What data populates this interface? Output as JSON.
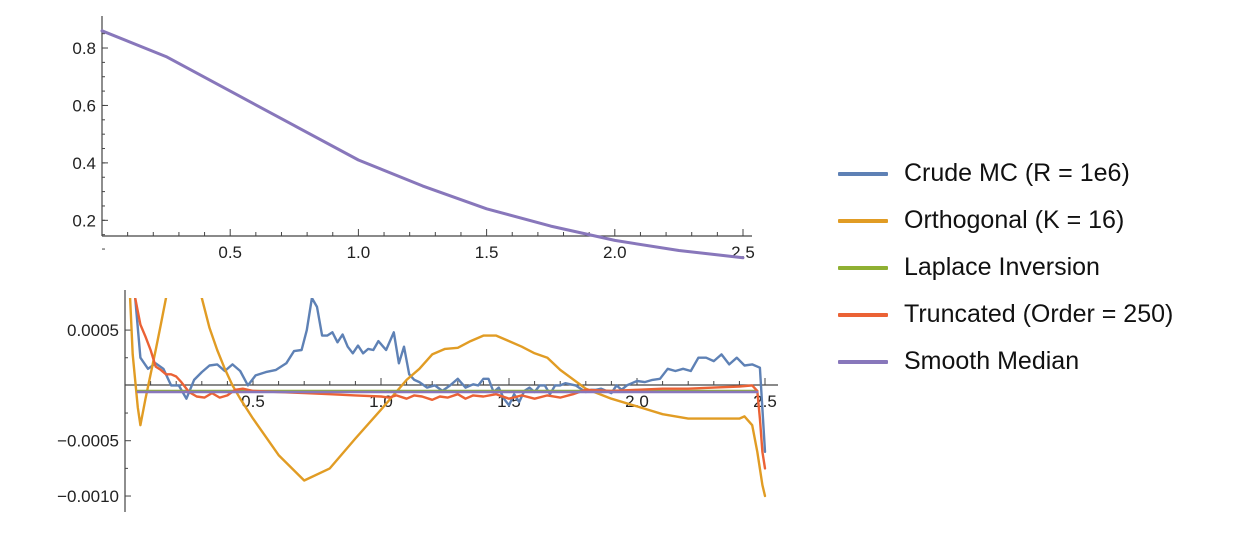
{
  "chart_data": [
    {
      "type": "line",
      "xlim": [
        0,
        2.5
      ],
      "ylim": [
        0.05,
        0.9
      ],
      "x_ticks": [
        "0.5",
        "1.0",
        "1.5",
        "2.0",
        "2.5"
      ],
      "y_ticks": [
        "0.2",
        "0.4",
        "0.6",
        "0.8"
      ],
      "grid": false,
      "series": [
        {
          "name": "Smooth Median",
          "color": "#8877bb",
          "x": [
            0.0,
            0.25,
            0.5,
            0.75,
            1.0,
            1.25,
            1.5,
            1.75,
            2.0,
            2.25,
            2.5
          ],
          "y": [
            0.86,
            0.77,
            0.65,
            0.53,
            0.41,
            0.32,
            0.24,
            0.18,
            0.13,
            0.095,
            0.07
          ]
        }
      ]
    },
    {
      "type": "line",
      "xlim": [
        0,
        2.5
      ],
      "ylim": [
        -0.00112,
        0.00079
      ],
      "x_ticks": [
        "0.5",
        "1.0",
        "1.5",
        "2.0",
        "2.5"
      ],
      "y_ticks": [
        "0.0005",
        "-0.0005",
        "-0.0010"
      ],
      "grid": false,
      "series": [
        {
          "name": "Crude MC (R = 1e6)",
          "color": "#5e81b5",
          "x": [
            0.04,
            0.06,
            0.09,
            0.12,
            0.15,
            0.18,
            0.21,
            0.24,
            0.27,
            0.3,
            0.33,
            0.36,
            0.39,
            0.42,
            0.45,
            0.48,
            0.51,
            0.55,
            0.59,
            0.63,
            0.66,
            0.69,
            0.71,
            0.73,
            0.75,
            0.77,
            0.79,
            0.81,
            0.83,
            0.85,
            0.87,
            0.89,
            0.91,
            0.93,
            0.95,
            0.97,
            0.99,
            1.02,
            1.05,
            1.07,
            1.09,
            1.11,
            1.13,
            1.15,
            1.18,
            1.21,
            1.24,
            1.27,
            1.3,
            1.33,
            1.36,
            1.38,
            1.4,
            1.42,
            1.44,
            1.46,
            1.48,
            1.5,
            1.52,
            1.54,
            1.56,
            1.58,
            1.6,
            1.62,
            1.64,
            1.66,
            1.68,
            1.7,
            1.72,
            1.74,
            1.76,
            1.78,
            1.8,
            1.82,
            1.84,
            1.86,
            1.88,
            1.9,
            1.92,
            1.94,
            1.96,
            1.98,
            2.0,
            2.03,
            2.06,
            2.09,
            2.12,
            2.15,
            2.18,
            2.21,
            2.24,
            2.27,
            2.3,
            2.33,
            2.36,
            2.39,
            2.42,
            2.45,
            2.48,
            2.5
          ],
          "y": [
            0.00079,
            0.00025,
            0.00015,
            0.0002,
            0.00015,
            0.0,
            0.0,
            -0.00012,
            5e-05,
            0.00012,
            0.00018,
            0.00019,
            0.00013,
            0.00019,
            0.00013,
            0.0,
            9e-05,
            0.00012,
            0.00014,
            0.0002,
            0.00031,
            0.00032,
            0.0005,
            0.00079,
            0.00071,
            0.00045,
            0.00045,
            0.00048,
            0.00039,
            0.00046,
            0.00035,
            0.00029,
            0.00036,
            0.00029,
            0.00033,
            0.00032,
            0.0004,
            0.00032,
            0.00048,
            0.0002,
            0.00035,
            0.0001,
            5e-05,
            3e-05,
            -2e-05,
            0.0,
            -5e-05,
            0.0,
            6e-05,
            -2e-05,
            1e-05,
            0.0,
            6e-05,
            6e-05,
            -6e-05,
            -2e-05,
            -0.00012,
            -0.00018,
            -8e-05,
            -0.00015,
            -5e-05,
            -2e-05,
            -6e-05,
            0.0,
            0.0,
            -8e-05,
            0.0,
            0.0,
            2e-05,
            1e-05,
            0.0,
            -3e-05,
            -6e-05,
            -4e-05,
            -4e-05,
            -3e-05,
            -5e-05,
            -7e-05,
            0.0,
            -4e-05,
            0.0,
            2e-05,
            4e-05,
            3e-05,
            5e-05,
            6e-05,
            0.00015,
            0.00013,
            0.00015,
            0.00013,
            0.00025,
            0.00025,
            0.00022,
            0.00028,
            0.00019,
            0.00025,
            0.00018,
            0.00019,
            0.00016,
            -0.0006
          ]
        },
        {
          "name": "Orthogonal (K = 16)",
          "color": "#e19c24",
          "x": [
            0.02,
            0.03,
            0.05,
            0.06,
            0.08,
            0.1,
            0.12,
            0.14,
            0.16,
            0.18,
            0.2,
            0.22,
            0.24,
            0.3,
            0.33,
            0.36,
            0.39,
            0.42,
            0.45,
            0.5,
            0.6,
            0.7,
            0.8,
            0.9,
            1.0,
            1.1,
            1.15,
            1.2,
            1.25,
            1.3,
            1.35,
            1.4,
            1.45,
            1.5,
            1.55,
            1.6,
            1.65,
            1.7,
            1.8,
            1.9,
            2.0,
            2.1,
            2.2,
            2.3,
            2.35,
            2.4,
            2.42,
            2.45,
            2.47,
            2.49,
            2.5
          ],
          "y": [
            0.00079,
            0.00028,
            -0.0002,
            -0.00036,
            -0.00012,
            0.0001,
            0.00032,
            0.00055,
            0.00079,
            null,
            null,
            null,
            null,
            0.00079,
            0.00052,
            0.00032,
            0.00015,
            0.0,
            -0.00012,
            -0.0003,
            -0.00063,
            -0.00086,
            -0.00075,
            -0.00048,
            -0.00022,
            5e-05,
            0.00015,
            0.00028,
            0.00033,
            0.00034,
            0.0004,
            0.00045,
            0.00045,
            0.0004,
            0.00035,
            0.00029,
            0.00025,
            0.00014,
            -3e-05,
            -0.00012,
            -0.00019,
            -0.00026,
            -0.0003,
            -0.0003,
            -0.0003,
            -0.0003,
            -0.00028,
            -0.00036,
            -0.0006,
            -0.0009,
            -0.001
          ]
        },
        {
          "name": "Laplace Inversion",
          "color": "#8fb032",
          "x": [
            0.05,
            2.47
          ],
          "y": [
            -5e-05,
            -5e-05
          ]
        },
        {
          "name": "Truncated (Order = 250)",
          "color": "#eb6235",
          "x": [
            0.04,
            0.06,
            0.08,
            0.1,
            0.12,
            0.14,
            0.16,
            0.18,
            0.2,
            0.22,
            0.25,
            0.28,
            0.31,
            0.34,
            0.37,
            0.4,
            0.43,
            0.46,
            0.5,
            0.6,
            0.7,
            0.8,
            0.9,
            1.0,
            1.03,
            1.06,
            1.1,
            1.13,
            1.16,
            1.2,
            1.23,
            1.26,
            1.3,
            1.33,
            1.36,
            1.4,
            1.45,
            1.5,
            1.55,
            1.6,
            1.65,
            1.7,
            1.75,
            1.8,
            1.9,
            2.0,
            2.1,
            2.2,
            2.3,
            2.4,
            2.45,
            2.47,
            2.48,
            2.49,
            2.5
          ],
          "y": [
            0.00079,
            0.00055,
            0.00044,
            0.00032,
            0.00017,
            0.00014,
            0.0001,
            0.0001,
            8e-05,
            3e-05,
            -6e-05,
            -0.0001,
            -0.00011,
            -7e-05,
            -0.00011,
            -9e-05,
            -4e-05,
            -3e-05,
            -5e-05,
            -6e-05,
            -7e-05,
            -8e-05,
            -9e-05,
            -0.0001,
            -0.00011,
            -9e-05,
            -0.00012,
            -9e-05,
            -0.0001,
            -0.00013,
            -0.0001,
            -0.00011,
            -8e-05,
            -0.00012,
            -9e-05,
            -0.0001,
            -8e-05,
            -0.00012,
            -9e-05,
            -0.00012,
            -9e-05,
            -0.00011,
            -8e-05,
            -4e-05,
            -5e-05,
            -4e-05,
            -3e-05,
            -3e-05,
            -2e-05,
            -1e-05,
            0.0,
            -5e-05,
            -0.0003,
            -0.0006,
            -0.00075
          ]
        },
        {
          "name": "Smooth Median",
          "color": "#8877bb",
          "x": [
            0.05,
            2.47
          ],
          "y": [
            -6e-05,
            -6e-05
          ]
        }
      ]
    }
  ],
  "legend": {
    "placement": "right",
    "items": [
      {
        "label": "Crude MC (R = 1e6)",
        "color": "#5e81b5"
      },
      {
        "label": "Orthogonal (K = 16)",
        "color": "#e19c24"
      },
      {
        "label": "Laplace Inversion",
        "color": "#8fb032"
      },
      {
        "label": "Truncated (Order = 250)",
        "color": "#eb6235"
      },
      {
        "label": "Smooth Median",
        "color": "#8877bb"
      }
    ]
  }
}
